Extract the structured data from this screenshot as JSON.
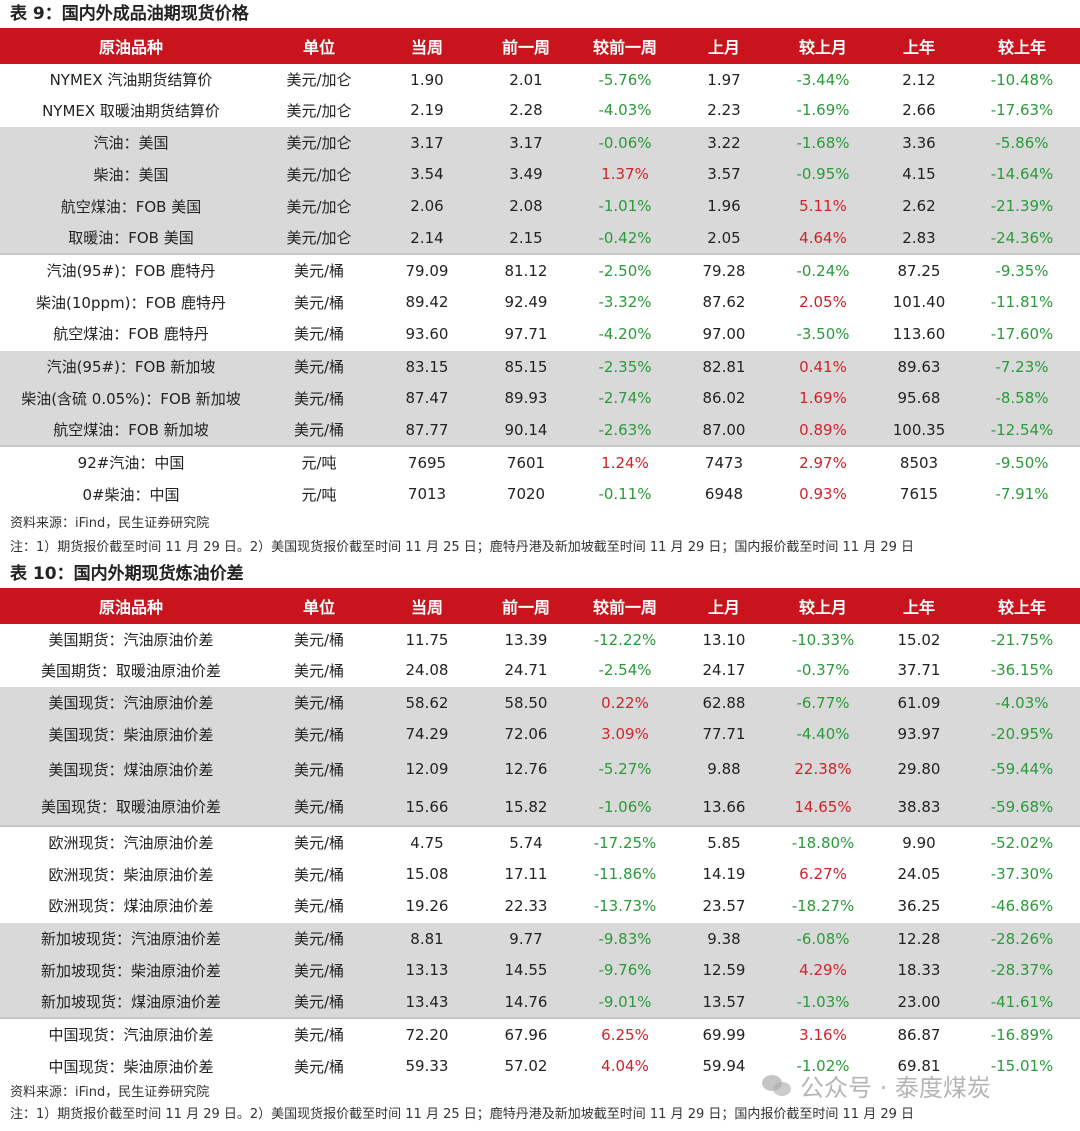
{
  "table1": {
    "title": "表 9：国内外成品油期现货价格",
    "headers": [
      "原油品种",
      "单位",
      "当周",
      "前一周",
      "较前一周",
      "上月",
      "较上月",
      "上年",
      "较上年"
    ],
    "rows": [
      {
        "name": "NYMEX 汽油期货结算价",
        "unit": "美元/加仑",
        "cur": "1.90",
        "prev": "2.01",
        "chg_w": "-5.76%",
        "month": "1.97",
        "chg_m": "-3.44%",
        "year": "2.12",
        "chg_y": "-10.48%"
      },
      {
        "name": "NYMEX 取暖油期货结算价",
        "unit": "美元/加仑",
        "cur": "2.19",
        "prev": "2.28",
        "chg_w": "-4.03%",
        "month": "2.23",
        "chg_m": "-1.69%",
        "year": "2.66",
        "chg_y": "-17.63%"
      },
      {
        "name": "汽油：美国",
        "unit": "美元/加仑",
        "cur": "3.17",
        "prev": "3.17",
        "chg_w": "-0.06%",
        "month": "3.22",
        "chg_m": "-1.68%",
        "year": "3.36",
        "chg_y": "-5.86%"
      },
      {
        "name": "柴油：美国",
        "unit": "美元/加仑",
        "cur": "3.54",
        "prev": "3.49",
        "chg_w": "1.37%",
        "month": "3.57",
        "chg_m": "-0.95%",
        "year": "4.15",
        "chg_y": "-14.64%"
      },
      {
        "name": "航空煤油：FOB 美国",
        "unit": "美元/加仑",
        "cur": "2.06",
        "prev": "2.08",
        "chg_w": "-1.01%",
        "month": "1.96",
        "chg_m": "5.11%",
        "year": "2.62",
        "chg_y": "-21.39%"
      },
      {
        "name": "取暖油：FOB 美国",
        "unit": "美元/加仑",
        "cur": "2.14",
        "prev": "2.15",
        "chg_w": "-0.42%",
        "month": "2.05",
        "chg_m": "4.64%",
        "year": "2.83",
        "chg_y": "-24.36%"
      },
      {
        "name": "汽油(95#)：FOB 鹿特丹",
        "unit": "美元/桶",
        "cur": "79.09",
        "prev": "81.12",
        "chg_w": "-2.50%",
        "month": "79.28",
        "chg_m": "-0.24%",
        "year": "87.25",
        "chg_y": "-9.35%"
      },
      {
        "name": "柴油(10ppm)：FOB 鹿特丹",
        "unit": "美元/桶",
        "cur": "89.42",
        "prev": "92.49",
        "chg_w": "-3.32%",
        "month": "87.62",
        "chg_m": "2.05%",
        "year": "101.40",
        "chg_y": "-11.81%"
      },
      {
        "name": "航空煤油：FOB 鹿特丹",
        "unit": "美元/桶",
        "cur": "93.60",
        "prev": "97.71",
        "chg_w": "-4.20%",
        "month": "97.00",
        "chg_m": "-3.50%",
        "year": "113.60",
        "chg_y": "-17.60%"
      },
      {
        "name": "汽油(95#)：FOB 新加坡",
        "unit": "美元/桶",
        "cur": "83.15",
        "prev": "85.15",
        "chg_w": "-2.35%",
        "month": "82.81",
        "chg_m": "0.41%",
        "year": "89.63",
        "chg_y": "-7.23%"
      },
      {
        "name": "柴油(含硫 0.05%)：FOB 新加坡",
        "unit": "美元/桶",
        "cur": "87.47",
        "prev": "89.93",
        "chg_w": "-2.74%",
        "month": "86.02",
        "chg_m": "1.69%",
        "year": "95.68",
        "chg_y": "-8.58%"
      },
      {
        "name": "航空煤油：FOB 新加坡",
        "unit": "美元/桶",
        "cur": "87.77",
        "prev": "90.14",
        "chg_w": "-2.63%",
        "month": "87.00",
        "chg_m": "0.89%",
        "year": "100.35",
        "chg_y": "-12.54%"
      },
      {
        "name": "92#汽油：中国",
        "unit": "元/吨",
        "cur": "7695",
        "prev": "7601",
        "chg_w": "1.24%",
        "month": "7473",
        "chg_m": "2.97%",
        "year": "8503",
        "chg_y": "-9.50%"
      },
      {
        "name": "0#柴油：中国",
        "unit": "元/吨",
        "cur": "7013",
        "prev": "7020",
        "chg_w": "-0.11%",
        "month": "6948",
        "chg_m": "0.93%",
        "year": "7615",
        "chg_y": "-7.91%"
      }
    ],
    "source": "资料来源：iFind，民生证券研究院",
    "note": "注：1）期货报价截至时间 11 月 29 日。2）美国现货报价截至时间 11 月 25 日；鹿特丹港及新加坡截至时间 11 月 29 日；国内报价截至时间 11 月 29 日"
  },
  "table2": {
    "title": "表 10：国内外期现货炼油价差",
    "headers": [
      "原油品种",
      "单位",
      "当周",
      "前一周",
      "较前一周",
      "上月",
      "较上月",
      "上年",
      "较上年"
    ],
    "rows": [
      {
        "name": "美国期货：汽油原油价差",
        "unit": "美元/桶",
        "cur": "11.75",
        "prev": "13.39",
        "chg_w": "-12.22%",
        "month": "13.10",
        "chg_m": "-10.33%",
        "year": "15.02",
        "chg_y": "-21.75%"
      },
      {
        "name": "美国期货：取暖油原油价差",
        "unit": "美元/桶",
        "cur": "24.08",
        "prev": "24.71",
        "chg_w": "-2.54%",
        "month": "24.17",
        "chg_m": "-0.37%",
        "year": "37.71",
        "chg_y": "-36.15%"
      },
      {
        "name": "美国现货：汽油原油价差",
        "unit": "美元/桶",
        "cur": "58.62",
        "prev": "58.50",
        "chg_w": "0.22%",
        "month": "62.88",
        "chg_m": "-6.77%",
        "year": "61.09",
        "chg_y": "-4.03%"
      },
      {
        "name": "美国现货：柴油原油价差",
        "unit": "美元/桶",
        "cur": "74.29",
        "prev": "72.06",
        "chg_w": "3.09%",
        "month": "77.71",
        "chg_m": "-4.40%",
        "year": "93.97",
        "chg_y": "-20.95%"
      },
      {
        "name": "美国现货：煤油原油价差",
        "unit": "美元/桶",
        "cur": "12.09",
        "prev": "12.76",
        "chg_w": "-5.27%",
        "month": "9.88",
        "chg_m": "22.38%",
        "year": "29.80",
        "chg_y": "-59.44%"
      },
      {
        "name": "美国现货：取暖油原油价差",
        "unit": "美元/桶",
        "cur": "15.66",
        "prev": "15.82",
        "chg_w": "-1.06%",
        "month": "13.66",
        "chg_m": "14.65%",
        "year": "38.83",
        "chg_y": "-59.68%"
      },
      {
        "name": "欧洲现货：汽油原油价差",
        "unit": "美元/桶",
        "cur": "4.75",
        "prev": "5.74",
        "chg_w": "-17.25%",
        "month": "5.85",
        "chg_m": "-18.80%",
        "year": "9.90",
        "chg_y": "-52.02%"
      },
      {
        "name": "欧洲现货：柴油原油价差",
        "unit": "美元/桶",
        "cur": "15.08",
        "prev": "17.11",
        "chg_w": "-11.86%",
        "month": "14.19",
        "chg_m": "6.27%",
        "year": "24.05",
        "chg_y": "-37.30%"
      },
      {
        "name": "欧洲现货：煤油原油价差",
        "unit": "美元/桶",
        "cur": "19.26",
        "prev": "22.33",
        "chg_w": "-13.73%",
        "month": "23.57",
        "chg_m": "-18.27%",
        "year": "36.25",
        "chg_y": "-46.86%"
      },
      {
        "name": "新加坡现货：汽油原油价差",
        "unit": "美元/桶",
        "cur": "8.81",
        "prev": "9.77",
        "chg_w": "-9.83%",
        "month": "9.38",
        "chg_m": "-6.08%",
        "year": "12.28",
        "chg_y": "-28.26%"
      },
      {
        "name": "新加坡现货：柴油原油价差",
        "unit": "美元/桶",
        "cur": "13.13",
        "prev": "14.55",
        "chg_w": "-9.76%",
        "month": "12.59",
        "chg_m": "4.29%",
        "year": "18.33",
        "chg_y": "-28.37%"
      },
      {
        "name": "新加坡现货：煤油原油价差",
        "unit": "美元/桶",
        "cur": "13.43",
        "prev": "14.76",
        "chg_w": "-9.01%",
        "month": "13.57",
        "chg_m": "-1.03%",
        "year": "23.00",
        "chg_y": "-41.61%"
      },
      {
        "name": "中国现货：汽油原油价差",
        "unit": "美元/桶",
        "cur": "72.20",
        "prev": "67.96",
        "chg_w": "6.25%",
        "month": "69.99",
        "chg_m": "3.16%",
        "year": "86.87",
        "chg_y": "-16.89%"
      },
      {
        "name": "中国现货：柴油原油价差",
        "unit": "美元/桶",
        "cur": "59.33",
        "prev": "57.02",
        "chg_w": "4.04%",
        "month": "59.94",
        "chg_m": "-1.02%",
        "year": "69.81",
        "chg_y": "-15.01%"
      }
    ],
    "source": "资料来源：iFind，民生证券研究院",
    "note": "注：1）期货报价截至时间 11 月 29 日。2）美国现货报价截至时间 11 月 25 日；鹿特丹港及新加坡截至时间 11 月 29 日；国内报价截至时间 11 月 29 日"
  },
  "watermark": "公众号 · 泰度煤炭",
  "colors": {
    "header_bg": "#c9141e",
    "positive": "#d0232b",
    "negative": "#2a9a3a",
    "band": "#d9d9d9"
  }
}
